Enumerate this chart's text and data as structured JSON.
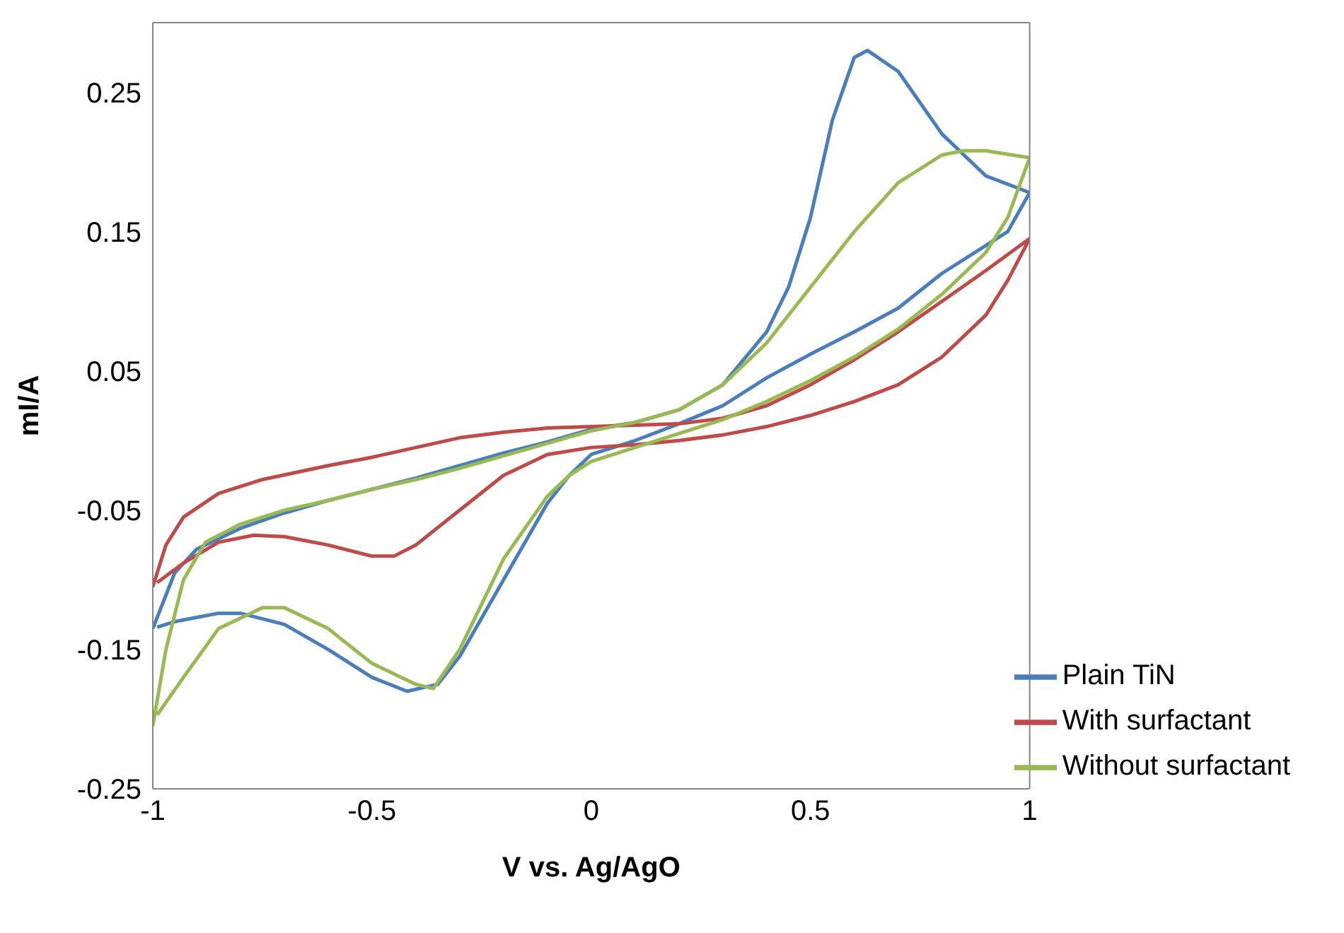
{
  "chart_data": {
    "type": "line",
    "xlabel": "V vs. Ag/AgO",
    "ylabel": "mI/A",
    "xlim": [
      -1,
      1
    ],
    "xticks": [
      -1,
      -0.5,
      0,
      0.5,
      1
    ],
    "ylim": [
      -0.25,
      0.3
    ],
    "yticks": [
      -0.25,
      -0.15,
      -0.05,
      0.05,
      0.15,
      0.25
    ],
    "grid": false,
    "legend": "bottom right",
    "marker": "none",
    "line_style": "solid",
    "series": [
      {
        "name": "Plain TiN",
        "color": "#4a7ebb",
        "x": [
          -1,
          -0.95,
          -0.9,
          -0.8,
          -0.7,
          -0.6,
          -0.5,
          -0.4,
          -0.3,
          -0.2,
          -0.1,
          0,
          0.1,
          0.2,
          0.3,
          0.4,
          0.45,
          0.5,
          0.55,
          0.6,
          0.63,
          0.7,
          0.8,
          0.9,
          1,
          0.95,
          0.9,
          0.8,
          0.7,
          0.6,
          0.5,
          0.4,
          0.3,
          0.2,
          0.1,
          0,
          -0.05,
          -0.1,
          -0.2,
          -0.3,
          -0.35,
          -0.42,
          -0.5,
          -0.6,
          -0.7,
          -0.8,
          -0.85,
          -0.95,
          -0.99
        ],
        "values": [
          -0.135,
          -0.095,
          -0.078,
          -0.063,
          -0.052,
          -0.043,
          -0.035,
          -0.027,
          -0.018,
          -0.009,
          -0.001,
          0.008,
          0.013,
          0.022,
          0.04,
          0.078,
          0.11,
          0.16,
          0.23,
          0.275,
          0.28,
          0.265,
          0.22,
          0.19,
          0.178,
          0.15,
          0.14,
          0.12,
          0.095,
          0.078,
          0.062,
          0.045,
          0.025,
          0.012,
          0.0,
          -0.01,
          -0.025,
          -0.045,
          -0.1,
          -0.155,
          -0.175,
          -0.18,
          -0.17,
          -0.15,
          -0.132,
          -0.124,
          -0.124,
          -0.13,
          -0.134
        ]
      },
      {
        "name": "With surfactant",
        "color": "#be4b48",
        "x": [
          -1,
          -0.97,
          -0.93,
          -0.85,
          -0.75,
          -0.6,
          -0.5,
          -0.4,
          -0.3,
          -0.2,
          -0.1,
          0,
          0.1,
          0.2,
          0.3,
          0.4,
          0.5,
          0.6,
          0.7,
          0.8,
          0.9,
          1,
          0.95,
          0.9,
          0.8,
          0.7,
          0.6,
          0.5,
          0.4,
          0.3,
          0.2,
          0.1,
          0,
          -0.1,
          -0.2,
          -0.3,
          -0.4,
          -0.45,
          -0.5,
          -0.6,
          -0.7,
          -0.77,
          -0.85,
          -0.93,
          -0.99
        ],
        "values": [
          -0.105,
          -0.075,
          -0.055,
          -0.038,
          -0.028,
          -0.018,
          -0.012,
          -0.005,
          0.002,
          0.006,
          0.009,
          0.01,
          0.011,
          0.012,
          0.016,
          0.025,
          0.04,
          0.058,
          0.078,
          0.1,
          0.122,
          0.145,
          0.115,
          0.09,
          0.06,
          0.04,
          0.028,
          0.018,
          0.01,
          0.004,
          0.0,
          -0.003,
          -0.005,
          -0.01,
          -0.025,
          -0.05,
          -0.075,
          -0.083,
          -0.083,
          -0.075,
          -0.069,
          -0.068,
          -0.073,
          -0.088,
          -0.102
        ]
      },
      {
        "name": "Without surfactant",
        "color": "#98b954",
        "x": [
          -1,
          -0.97,
          -0.93,
          -0.88,
          -0.8,
          -0.7,
          -0.6,
          -0.5,
          -0.4,
          -0.3,
          -0.2,
          -0.1,
          0,
          0.1,
          0.2,
          0.3,
          0.4,
          0.5,
          0.6,
          0.7,
          0.8,
          0.85,
          0.9,
          1,
          0.95,
          0.9,
          0.8,
          0.7,
          0.6,
          0.5,
          0.4,
          0.3,
          0.2,
          0.1,
          0,
          -0.05,
          -0.1,
          -0.2,
          -0.3,
          -0.36,
          -0.4,
          -0.5,
          -0.6,
          -0.7,
          -0.75,
          -0.85,
          -0.93,
          -0.99
        ],
        "values": [
          -0.205,
          -0.15,
          -0.1,
          -0.073,
          -0.06,
          -0.05,
          -0.043,
          -0.035,
          -0.028,
          -0.02,
          -0.011,
          -0.002,
          0.007,
          0.013,
          0.022,
          0.04,
          0.07,
          0.11,
          0.15,
          0.185,
          0.205,
          0.208,
          0.208,
          0.203,
          0.16,
          0.135,
          0.105,
          0.08,
          0.06,
          0.043,
          0.028,
          0.015,
          0.005,
          -0.005,
          -0.015,
          -0.025,
          -0.04,
          -0.085,
          -0.15,
          -0.178,
          -0.175,
          -0.16,
          -0.135,
          -0.12,
          -0.12,
          -0.135,
          -0.17,
          -0.197
        ]
      }
    ]
  }
}
